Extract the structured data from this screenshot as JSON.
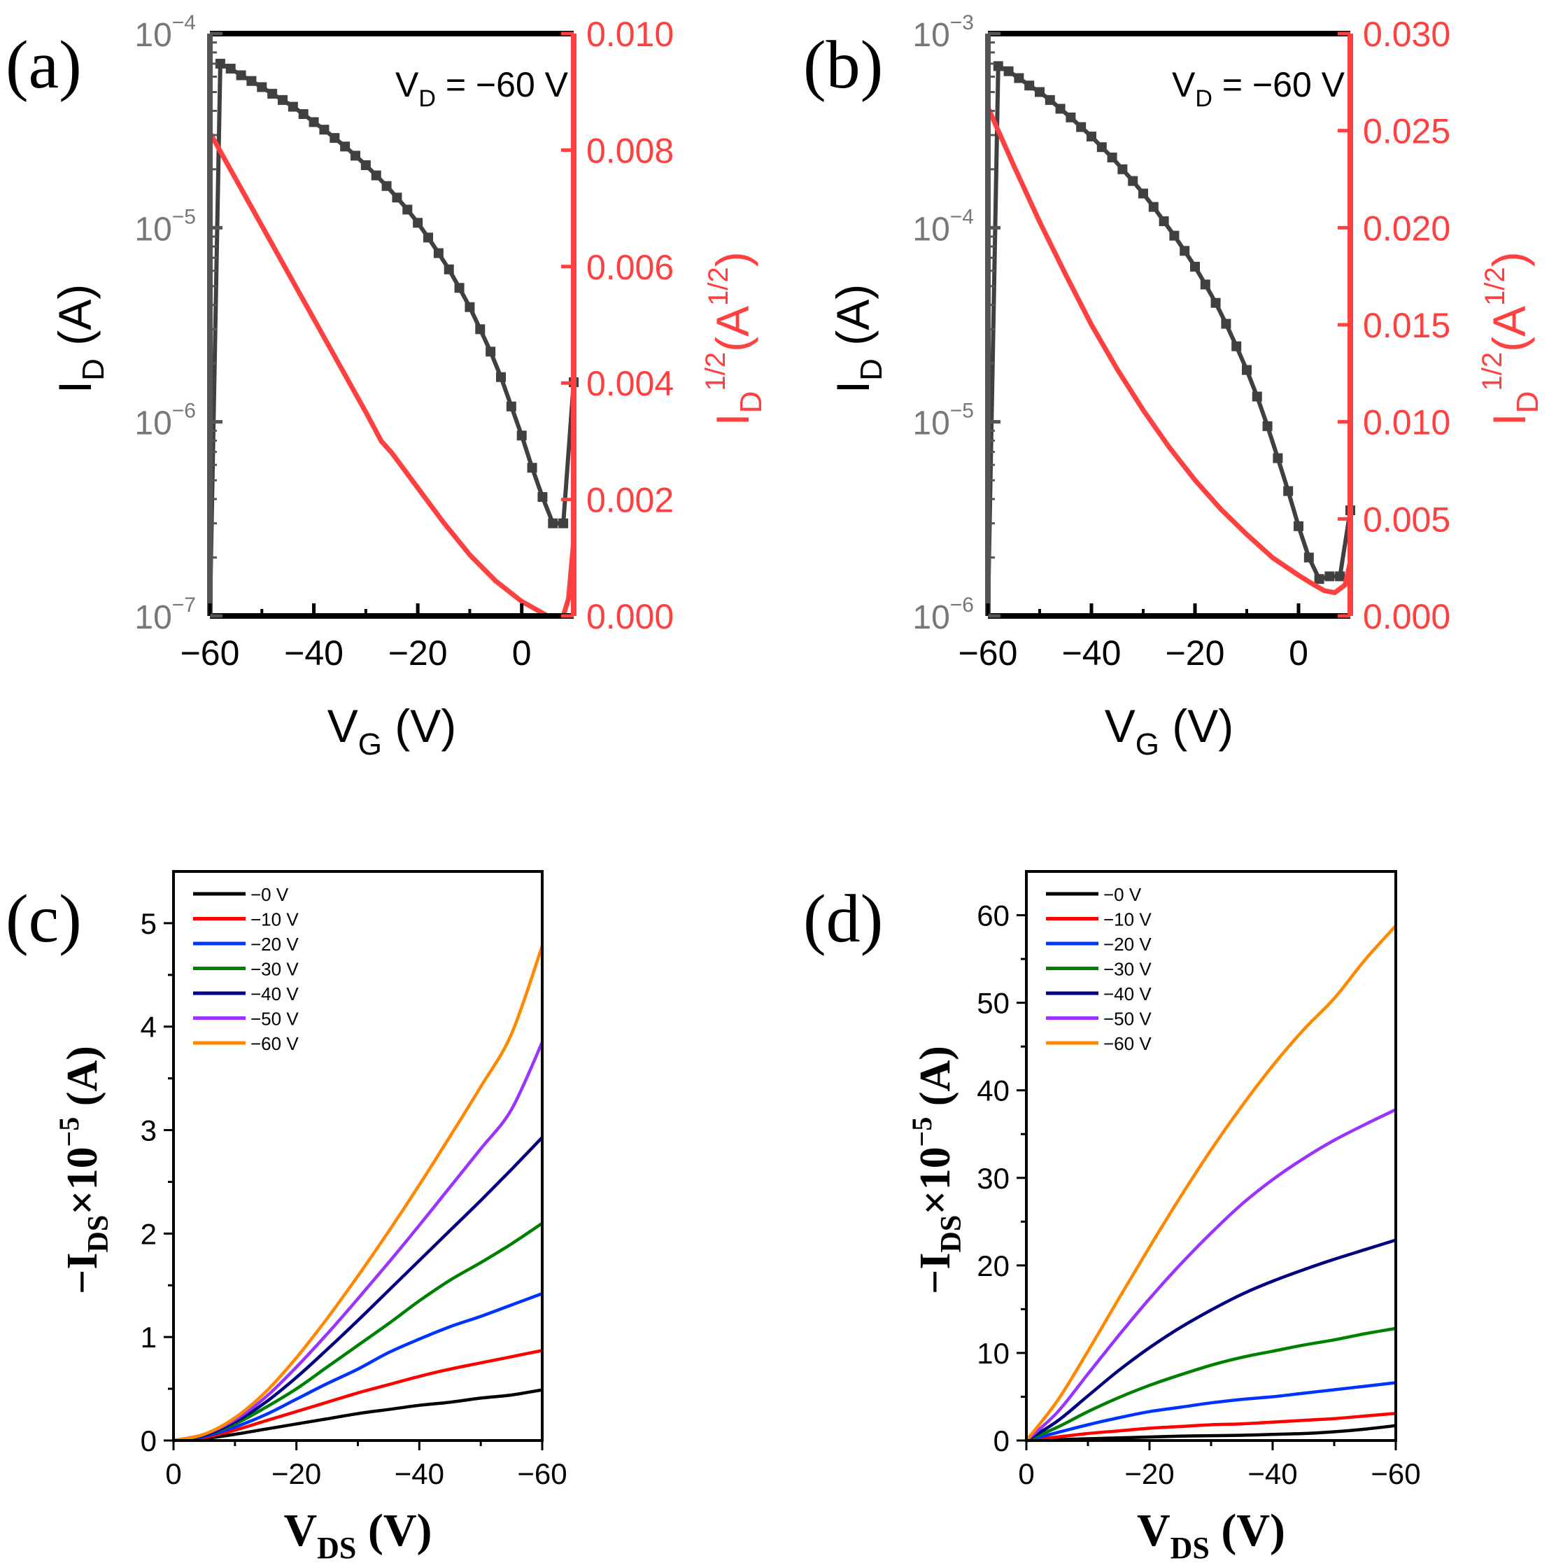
{
  "chart_data": [
    {
      "panel_label": "(a)",
      "type": "line",
      "annotation": {
        "main": "V",
        "sub": "D",
        "tail": " = −60 V"
      },
      "xlabel": {
        "main": "V",
        "sub": "G",
        "tail": " (V)"
      },
      "ylabel_left": {
        "main": "I",
        "sub": "D",
        "tail": " (A)"
      },
      "ylabel_right": {
        "main": "I",
        "sub": "D",
        "sup": "1/2",
        "tail": "(A",
        "tail_sup": "1/2",
        "close": ")"
      },
      "x_range": [
        -60,
        10
      ],
      "x_ticks": [
        -60,
        -40,
        -20,
        0
      ],
      "x_tick_labels": [
        "−60",
        "−40",
        "−20",
        "0"
      ],
      "y_left_scale": "log",
      "y_left_range": [
        1e-07,
        0.0001
      ],
      "y_left_ticks": [
        1e-07,
        1e-06,
        1e-05,
        0.0001
      ],
      "y_left_tick_labels": [
        {
          "base": "10",
          "exp": "−7"
        },
        {
          "base": "10",
          "exp": "−6"
        },
        {
          "base": "10",
          "exp": "−5"
        },
        {
          "base": "10",
          "exp": "−4"
        }
      ],
      "y_right_range": [
        0,
        0.01
      ],
      "y_right_ticks": [
        0,
        0.002,
        0.004,
        0.006,
        0.008,
        0.01
      ],
      "y_right_tick_labels": [
        "0.000",
        "0.002",
        "0.004",
        "0.006",
        "0.008",
        "0.010"
      ],
      "series": [
        {
          "axis": "left",
          "color": "#404040",
          "marker": "square",
          "x": [
            -60,
            -58,
            -56,
            -54,
            -52,
            -50,
            -48,
            -46,
            -44,
            -42,
            -40,
            -38,
            -36,
            -34,
            -32,
            -30,
            -28,
            -26,
            -24,
            -22,
            -20,
            -18,
            -16,
            -14,
            -12,
            -10,
            -8,
            -6,
            -4,
            -2,
            0,
            2,
            4,
            6,
            8,
            10
          ],
          "y": [
            1e-07,
            7e-05,
            6.6e-05,
            6.1e-05,
            5.7e-05,
            5.3e-05,
            4.9e-05,
            4.55e-05,
            4.2e-05,
            3.85e-05,
            3.5e-05,
            3.2e-05,
            2.9e-05,
            2.62e-05,
            2.35e-05,
            2.1e-05,
            1.86e-05,
            1.64e-05,
            1.43e-05,
            1.24e-05,
            1.06e-05,
            8.9e-06,
            7.4e-06,
            6.1e-06,
            4.9e-06,
            3.9e-06,
            3e-06,
            2.3e-06,
            1.7e-06,
            1.2e-06,
            8.5e-07,
            5.8e-07,
            4.1e-07,
            3e-07,
            3e-07,
            1.6e-06
          ]
        },
        {
          "axis": "right",
          "color": "#ff4040",
          "marker": "none",
          "x": [
            -60,
            -55,
            -50,
            -45,
            -40,
            -35,
            -30,
            -27,
            -25,
            -20,
            -15,
            -10,
            -5,
            0,
            3,
            5,
            8,
            9,
            10
          ],
          "y": [
            0.0083,
            0.0075,
            0.0067,
            0.0059,
            0.0051,
            0.0043,
            0.0035,
            0.003,
            0.0028,
            0.0022,
            0.0016,
            0.00105,
            0.0006,
            0.00025,
            0.0001,
            0.0,
            0.0,
            0.0003,
            0.0013
          ]
        }
      ]
    },
    {
      "panel_label": "(b)",
      "type": "line",
      "annotation": {
        "main": "V",
        "sub": "D",
        "tail": " = −60 V"
      },
      "xlabel": {
        "main": "V",
        "sub": "G",
        "tail": " (V)"
      },
      "ylabel_left": {
        "main": "I",
        "sub": "D",
        "tail": " (A)"
      },
      "ylabel_right": {
        "main": "I",
        "sub": "D",
        "sup": "1/2",
        "tail": "(A",
        "tail_sup": "1/2",
        "close": ")"
      },
      "x_range": [
        -60,
        10
      ],
      "x_ticks": [
        -60,
        -40,
        -20,
        0
      ],
      "x_tick_labels": [
        "−60",
        "−40",
        "−20",
        "0"
      ],
      "y_left_scale": "log",
      "y_left_range": [
        1e-06,
        0.001
      ],
      "y_left_ticks": [
        1e-06,
        1e-05,
        0.0001,
        0.001
      ],
      "y_left_tick_labels": [
        {
          "base": "10",
          "exp": "−6"
        },
        {
          "base": "10",
          "exp": "−5"
        },
        {
          "base": "10",
          "exp": "−4"
        },
        {
          "base": "10",
          "exp": "−3"
        }
      ],
      "y_right_range": [
        0,
        0.03
      ],
      "y_right_ticks": [
        0,
        0.005,
        0.01,
        0.015,
        0.02,
        0.025,
        0.03
      ],
      "y_right_tick_labels": [
        "0.000",
        "0.005",
        "0.010",
        "0.015",
        "0.020",
        "0.025",
        "0.030"
      ],
      "series": [
        {
          "axis": "left",
          "color": "#404040",
          "marker": "square",
          "x": [
            -60,
            -58,
            -56,
            -54,
            -52,
            -50,
            -48,
            -46,
            -44,
            -42,
            -40,
            -38,
            -36,
            -34,
            -32,
            -30,
            -28,
            -26,
            -24,
            -22,
            -20,
            -18,
            -16,
            -14,
            -12,
            -10,
            -8,
            -6,
            -4,
            -2,
            0,
            2,
            4,
            6,
            8,
            10
          ],
          "y": [
            1e-06,
            0.00068,
            0.00064,
            0.00059,
            0.00054,
            0.0005,
            0.000455,
            0.00041,
            0.00037,
            0.00033,
            0.000295,
            0.00026,
            0.00023,
            0.0002,
            0.000174,
            0.00015,
            0.000128,
            0.000108,
            9.1e-05,
            7.6e-05,
            6.3e-05,
            5.1e-05,
            4.1e-05,
            3.2e-05,
            2.45e-05,
            1.85e-05,
            1.35e-05,
            9.5e-06,
            6.5e-06,
            4.4e-06,
            2.9e-06,
            2e-06,
            1.55e-06,
            1.6e-06,
            1.6e-06,
            3.5e-06
          ]
        },
        {
          "axis": "right",
          "color": "#ff4040",
          "marker": "none",
          "x": [
            -60,
            -55,
            -50,
            -45,
            -40,
            -35,
            -30,
            -25,
            -20,
            -15,
            -10,
            -5,
            0,
            3,
            5,
            7,
            9,
            10
          ],
          "y": [
            0.0262,
            0.0232,
            0.0203,
            0.0176,
            0.015,
            0.0127,
            0.0106,
            0.0087,
            0.007,
            0.0055,
            0.0042,
            0.003,
            0.0021,
            0.0016,
            0.0013,
            0.0012,
            0.0016,
            0.0028
          ]
        }
      ]
    },
    {
      "panel_label": "(c)",
      "type": "line",
      "xlabel": {
        "main": "V",
        "sub": "DS",
        "tail": " (V)"
      },
      "ylabel": {
        "main": "−I",
        "sub": "DS",
        "mid": "×10",
        "sup": "−5",
        "tail": " (A)"
      },
      "x_range": [
        0,
        -60
      ],
      "x_ticks": [
        0,
        -20,
        -40,
        -60
      ],
      "x_tick_labels": [
        "0",
        "−20",
        "−40",
        "−60"
      ],
      "y_range": [
        0,
        5.5
      ],
      "y_ticks": [
        0,
        1,
        2,
        3,
        4,
        5
      ],
      "y_tick_labels": [
        "0",
        "1",
        "2",
        "3",
        "4",
        "5"
      ],
      "legend_position": "top-left",
      "x": [
        0,
        -5,
        -10,
        -15,
        -20,
        -25,
        -30,
        -35,
        -40,
        -45,
        -50,
        -55,
        -60
      ],
      "series": [
        {
          "name": "−0 V",
          "color": "#000000",
          "values": [
            0,
            0.02,
            0.06,
            0.11,
            0.16,
            0.21,
            0.26,
            0.3,
            0.34,
            0.37,
            0.41,
            0.44,
            0.49
          ]
        },
        {
          "name": "−10 V",
          "color": "#ff0000",
          "values": [
            0,
            0.03,
            0.1,
            0.19,
            0.28,
            0.37,
            0.46,
            0.54,
            0.62,
            0.69,
            0.75,
            0.81,
            0.87
          ]
        },
        {
          "name": "−20 V",
          "color": "#0033ff",
          "values": [
            0,
            0.04,
            0.13,
            0.25,
            0.4,
            0.55,
            0.69,
            0.85,
            0.98,
            1.1,
            1.2,
            1.31,
            1.42
          ]
        },
        {
          "name": "−30 V",
          "color": "#008000",
          "values": [
            0,
            0.05,
            0.16,
            0.32,
            0.5,
            0.71,
            0.92,
            1.13,
            1.35,
            1.55,
            1.72,
            1.9,
            2.1
          ]
        },
        {
          "name": "−40 V",
          "color": "#000080",
          "values": [
            0,
            0.05,
            0.18,
            0.37,
            0.61,
            0.88,
            1.16,
            1.45,
            1.74,
            2.03,
            2.32,
            2.62,
            2.93
          ]
        },
        {
          "name": "−50 V",
          "color": "#9933ff",
          "values": [
            0,
            0.06,
            0.2,
            0.42,
            0.71,
            1.03,
            1.37,
            1.72,
            2.08,
            2.45,
            2.82,
            3.2,
            3.85
          ]
        },
        {
          "name": "−60 V",
          "color": "#ff8800",
          "values": [
            0,
            0.06,
            0.22,
            0.47,
            0.8,
            1.18,
            1.59,
            2.02,
            2.47,
            2.94,
            3.42,
            3.93,
            4.78
          ]
        }
      ]
    },
    {
      "panel_label": "(d)",
      "type": "line",
      "xlabel": {
        "main": "V",
        "sub": "DS",
        "tail": " (V)"
      },
      "ylabel": {
        "main": "−I",
        "sub": "DS",
        "mid": "×10",
        "sup": "−5",
        "tail": " (A)"
      },
      "x_range": [
        0,
        -60
      ],
      "x_ticks": [
        0,
        -20,
        -40,
        -60
      ],
      "x_tick_labels": [
        "0",
        "−20",
        "−40",
        "−60"
      ],
      "y_range": [
        0,
        65
      ],
      "y_ticks": [
        0,
        10,
        20,
        30,
        40,
        50,
        60
      ],
      "y_tick_labels": [
        "0",
        "10",
        "20",
        "30",
        "40",
        "50",
        "60"
      ],
      "legend_position": "top-left",
      "x": [
        0,
        -5,
        -10,
        -15,
        -20,
        -25,
        -30,
        -35,
        -40,
        -45,
        -50,
        -55,
        -60
      ],
      "series": [
        {
          "name": "−0 V",
          "color": "#000000",
          "values": [
            0,
            0.1,
            0.2,
            0.3,
            0.4,
            0.5,
            0.55,
            0.6,
            0.7,
            0.8,
            1.0,
            1.3,
            1.7
          ]
        },
        {
          "name": "−10 V",
          "color": "#ff0000",
          "values": [
            0,
            0.4,
            0.8,
            1.1,
            1.4,
            1.6,
            1.8,
            1.9,
            2.1,
            2.3,
            2.5,
            2.8,
            3.1
          ]
        },
        {
          "name": "−20 V",
          "color": "#0033ff",
          "values": [
            0,
            0.9,
            1.8,
            2.6,
            3.3,
            3.8,
            4.3,
            4.7,
            5.0,
            5.4,
            5.8,
            6.2,
            6.6
          ]
        },
        {
          "name": "−30 V",
          "color": "#008000",
          "values": [
            0,
            1.5,
            3.3,
            4.9,
            6.3,
            7.5,
            8.6,
            9.5,
            10.2,
            10.9,
            11.5,
            12.2,
            12.8
          ]
        },
        {
          "name": "−40 V",
          "color": "#000080",
          "values": [
            0,
            2.2,
            5.1,
            8.0,
            10.6,
            12.9,
            14.9,
            16.7,
            18.2,
            19.5,
            20.7,
            21.8,
            22.9
          ]
        },
        {
          "name": "−50 V",
          "color": "#9933ff",
          "values": [
            0,
            3.2,
            7.6,
            12.0,
            16.2,
            20.1,
            23.7,
            27.0,
            29.8,
            32.2,
            34.3,
            36.1,
            37.8
          ]
        },
        {
          "name": "−60 V",
          "color": "#ff8800",
          "values": [
            0,
            4.5,
            10.2,
            16.2,
            22.1,
            27.8,
            33.2,
            38.2,
            42.8,
            46.9,
            50.5,
            54.9,
            58.8
          ]
        }
      ]
    }
  ]
}
